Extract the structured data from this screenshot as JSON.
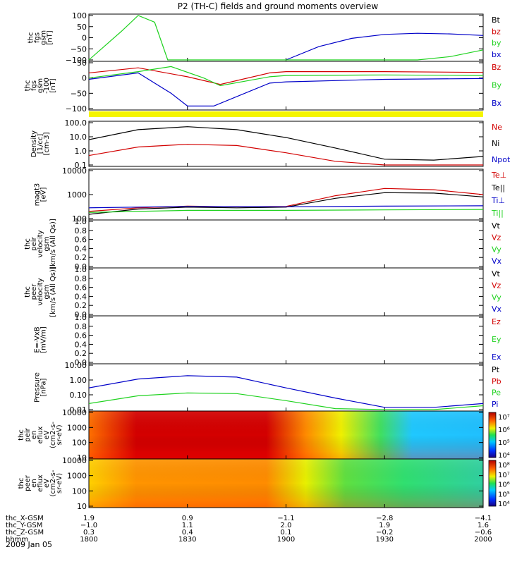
{
  "colors": {
    "black": "#000000",
    "red": "#d20000",
    "green": "#1fd21f",
    "blue": "#0000c8",
    "yellow": "#f5f500"
  },
  "title": "P2 (TH-C) fields and ground moments overview",
  "date": "2009 Jan 05",
  "panels": [
    {
      "id": "fgs",
      "ylabel": [
        "thc",
        "fgs",
        "gsm",
        "[nT]"
      ],
      "yticks": [
        "100",
        "50",
        "0",
        "−50",
        "−100"
      ],
      "legend": [
        {
          "text": "Bt",
          "color": "#000000"
        },
        {
          "text": "bz",
          "color": "#d20000"
        },
        {
          "text": "by",
          "color": "#1fd21f"
        },
        {
          "text": "bx",
          "color": "#0000c8"
        }
      ]
    },
    {
      "id": "fgs_b",
      "ylabel": [
        "thc",
        "fgs",
        "gsm",
        "-100",
        "[nT]"
      ],
      "yticks": [
        "50",
        "0",
        "−50",
        "−100"
      ],
      "legend": [
        {
          "text": "Bz",
          "color": "#d20000"
        },
        {
          "text": "By",
          "color": "#1fd21f"
        },
        {
          "text": "Bx",
          "color": "#0000c8"
        }
      ]
    },
    {
      "id": "density",
      "ylabel": [
        "Density",
        "[1/cc]",
        "[cm-3]"
      ],
      "yticks": [
        "100.0",
        "10.0",
        "1.0",
        "0.1"
      ],
      "legend": [
        {
          "text": "Ne",
          "color": "#d20000"
        },
        {
          "text": "Ni",
          "color": "#000000"
        },
        {
          "text": "Npot",
          "color": "#0000c8"
        }
      ]
    },
    {
      "id": "temp",
      "ylabel": [
        "magt3",
        "[eV]"
      ],
      "yticks": [
        "10000",
        "1000",
        "100"
      ],
      "legend": [
        {
          "text": "Te⊥",
          "color": "#d20000"
        },
        {
          "text": "Te||",
          "color": "#000000"
        },
        {
          "text": "Ti⊥",
          "color": "#0000c8"
        },
        {
          "text": "Ti||",
          "color": "#1fd21f"
        }
      ]
    },
    {
      "id": "peir_vel",
      "ylabel": [
        "thc",
        "peir",
        "velocity",
        "gsm",
        "[km/s (All Qs)]"
      ],
      "yticks": [
        "1.0",
        "0.8",
        "0.6",
        "0.4",
        "0.2",
        "0.0"
      ],
      "legend": [
        {
          "text": "Vt",
          "color": "#000000"
        },
        {
          "text": "Vz",
          "color": "#d20000"
        },
        {
          "text": "Vy",
          "color": "#1fd21f"
        },
        {
          "text": "Vx",
          "color": "#0000c8"
        }
      ]
    },
    {
      "id": "peer_vel",
      "ylabel": [
        "thc",
        "peer",
        "velocity",
        "gsm",
        "[km/s (All Qs)]"
      ],
      "yticks": [
        "1.0",
        "0.8",
        "0.6",
        "0.4",
        "0.2",
        "0.0"
      ],
      "legend": [
        {
          "text": "Vt",
          "color": "#000000"
        },
        {
          "text": "Vz",
          "color": "#d20000"
        },
        {
          "text": "Vy",
          "color": "#1fd21f"
        },
        {
          "text": "Vx",
          "color": "#0000c8"
        }
      ]
    },
    {
      "id": "efield",
      "ylabel": [
        "E=-VxB",
        "[mV/m]"
      ],
      "yticks": [
        "1.0",
        "0.8",
        "0.6",
        "0.4",
        "0.2",
        "0.0"
      ],
      "legend": [
        {
          "text": "Ez",
          "color": "#d20000"
        },
        {
          "text": "Ey",
          "color": "#1fd21f"
        },
        {
          "text": "Ex",
          "color": "#0000c8"
        }
      ]
    },
    {
      "id": "pressure",
      "ylabel": [
        "Pressure",
        "[nPa]"
      ],
      "yticks": [
        "10.00",
        "1.00",
        "0.10",
        "0.01"
      ],
      "legend": [
        {
          "text": "Pt",
          "color": "#000000"
        },
        {
          "text": "Pb",
          "color": "#d20000"
        },
        {
          "text": "Pe",
          "color": "#1fd21f"
        },
        {
          "text": "Pi",
          "color": "#0000c8"
        }
      ]
    },
    {
      "id": "peir_spec",
      "ylabel": [
        "thc",
        "peir",
        "en",
        "eflux",
        "eV",
        "(cm2-s-",
        "sr-eV)"
      ],
      "yticks": [
        "10000",
        "1000",
        "100",
        "10"
      ],
      "cbar": [
        "10⁷",
        "10⁶",
        "10⁵",
        "10⁴"
      ]
    },
    {
      "id": "peer_spec",
      "ylabel": [
        "thc",
        "peer",
        "en",
        "eflux",
        "eV",
        "(cm2-s-",
        "sr-eV)"
      ],
      "yticks": [
        "10000",
        "1000",
        "100",
        "10"
      ],
      "cbar": [
        "10⁸",
        "10⁷",
        "10⁶",
        "10⁵",
        "10⁴"
      ]
    }
  ],
  "xaxis_rows": [
    {
      "label": "thc_X-GSM",
      "values": [
        "1.9",
        "0.9",
        "−1.1",
        "−2.8",
        "−4.1"
      ]
    },
    {
      "label": "thc_Y-GSM",
      "values": [
        "−1.0",
        "1.1",
        "2.0",
        "1.9",
        "1.6"
      ]
    },
    {
      "label": "thc_Z-GSM",
      "values": [
        "0.3",
        "0.4",
        "0.1",
        "−0.2",
        "−0.6"
      ]
    },
    {
      "label": "hhmm",
      "values": [
        "1800",
        "1830",
        "1900",
        "1930",
        "2000"
      ]
    }
  ],
  "chart_data": [
    {
      "type": "line",
      "panel": "fgs",
      "x_unit": "hhmm",
      "ylim": [
        -100,
        100
      ],
      "series": [
        {
          "name": "bx",
          "x": [
            "1900",
            "1910",
            "1920",
            "1930",
            "1940",
            "1950",
            "2000"
          ],
          "values": [
            -100,
            -40,
            -3,
            15,
            20,
            17,
            10
          ]
        },
        {
          "name": "by",
          "x": [
            "1800",
            "1810",
            "1815",
            "1820",
            "1824",
            "1940",
            "1950",
            "2000"
          ],
          "values": [
            -100,
            30,
            100,
            70,
            -100,
            -100,
            -85,
            -55
          ]
        }
      ]
    },
    {
      "type": "line",
      "panel": "fgs_b",
      "x_unit": "hhmm",
      "ylim": [
        -120,
        60
      ],
      "series": [
        {
          "name": "Bz",
          "x": [
            "1800",
            "1815",
            "1830",
            "1840",
            "1855",
            "1900",
            "1930",
            "2000"
          ],
          "values": [
            20,
            40,
            5,
            -25,
            20,
            25,
            25,
            22
          ]
        },
        {
          "name": "By",
          "x": [
            "1800",
            "1815",
            "1825",
            "1835",
            "1840",
            "1855",
            "1900",
            "1930",
            "2000"
          ],
          "values": [
            0,
            25,
            45,
            0,
            -30,
            5,
            10,
            12,
            10
          ]
        },
        {
          "name": "Bx",
          "x": [
            "1800",
            "1815",
            "1825",
            "1830",
            "1838",
            "1855",
            "1900",
            "1930",
            "2000"
          ],
          "values": [
            -5,
            20,
            -60,
            -110,
            -110,
            -20,
            -15,
            -5,
            -2
          ]
        }
      ]
    },
    {
      "type": "line",
      "panel": "density",
      "x_unit": "hhmm",
      "ylim": [
        0.1,
        300
      ],
      "yscale": "log",
      "series": [
        {
          "name": "Ni",
          "x": [
            "1800",
            "1815",
            "1830",
            "1845",
            "1900",
            "1915",
            "1930",
            "1945",
            "2000"
          ],
          "values": [
            12,
            80,
            140,
            80,
            18,
            2.5,
            0.3,
            0.25,
            0.5
          ]
        },
        {
          "name": "Ne",
          "x": [
            "1800",
            "1815",
            "1830",
            "1845",
            "1900",
            "1915",
            "1930",
            "1945",
            "2000"
          ],
          "values": [
            0.6,
            3.0,
            5.0,
            4.0,
            1.0,
            0.2,
            0.1,
            0.1,
            0.1
          ]
        }
      ]
    },
    {
      "type": "line",
      "panel": "temp",
      "x_unit": "hhmm",
      "ylim": [
        100,
        10000
      ],
      "yscale": "log",
      "series": [
        {
          "name": "Te⊥",
          "x": [
            "1800",
            "1815",
            "1830",
            "1845",
            "1900",
            "1915",
            "1930",
            "1945",
            "2000"
          ],
          "values": [
            200,
            280,
            330,
            310,
            320,
            900,
            1800,
            1600,
            1000
          ]
        },
        {
          "name": "Te||",
          "x": [
            "1800",
            "1815",
            "1830",
            "1845",
            "1900",
            "1915",
            "1930",
            "1945",
            "2000"
          ],
          "values": [
            150,
            250,
            300,
            280,
            300,
            700,
            1200,
            1150,
            800
          ]
        },
        {
          "name": "Ti⊥",
          "x": [
            "1800",
            "1830",
            "1900",
            "1930",
            "2000"
          ],
          "values": [
            280,
            320,
            310,
            330,
            340
          ]
        },
        {
          "name": "Ti||",
          "x": [
            "1800",
            "1830",
            "1900",
            "1930",
            "2000"
          ],
          "values": [
            180,
            220,
            220,
            230,
            240
          ]
        }
      ]
    },
    {
      "type": "line",
      "panel": "pressure",
      "x_unit": "hhmm",
      "ylim": [
        0.01,
        30
      ],
      "yscale": "log",
      "series": [
        {
          "name": "Pi",
          "x": [
            "1800",
            "1815",
            "1830",
            "1845",
            "1900",
            "1915",
            "1930",
            "1945",
            "2000"
          ],
          "values": [
            0.5,
            2.5,
            4.5,
            3.5,
            0.5,
            0.08,
            0.015,
            0.015,
            0.03
          ]
        },
        {
          "name": "Pe",
          "x": [
            "1800",
            "1815",
            "1830",
            "1845",
            "1900",
            "1915",
            "1930",
            "1945",
            "2000"
          ],
          "values": [
            0.03,
            0.12,
            0.2,
            0.18,
            0.05,
            0.012,
            0.01,
            0.01,
            0.02
          ]
        }
      ]
    },
    {
      "type": "heatmap",
      "panel": "peir_spec",
      "x_unit": "hhmm",
      "ylim": [
        8,
        20000
      ],
      "yscale": "log",
      "clim": [
        10000,
        10000000
      ],
      "bands": [
        {
          "x": [
            "1800",
            "1810"
          ],
          "level": 0.75
        },
        {
          "x": [
            "1810",
            "1850"
          ],
          "level": 0.95
        },
        {
          "x": [
            "1850",
            "1900"
          ],
          "level": 0.65
        },
        {
          "x": [
            "1900",
            "1915"
          ],
          "level": 0.45
        },
        {
          "x": [
            "1915",
            "2000"
          ],
          "level": 0.3
        }
      ]
    },
    {
      "type": "heatmap",
      "panel": "peer_spec",
      "x_unit": "hhmm",
      "ylim": [
        8,
        20000
      ],
      "yscale": "log",
      "clim": [
        10000,
        100000000
      ],
      "bands": [
        {
          "x": [
            "1800",
            "1810"
          ],
          "level": 0.6
        },
        {
          "x": [
            "1810",
            "1850"
          ],
          "level": 0.7
        },
        {
          "x": [
            "1850",
            "1900"
          ],
          "level": 0.6
        },
        {
          "x": [
            "1900",
            "1915"
          ],
          "level": 0.55
        },
        {
          "x": [
            "1915",
            "2000"
          ],
          "level": 0.45
        }
      ]
    }
  ]
}
